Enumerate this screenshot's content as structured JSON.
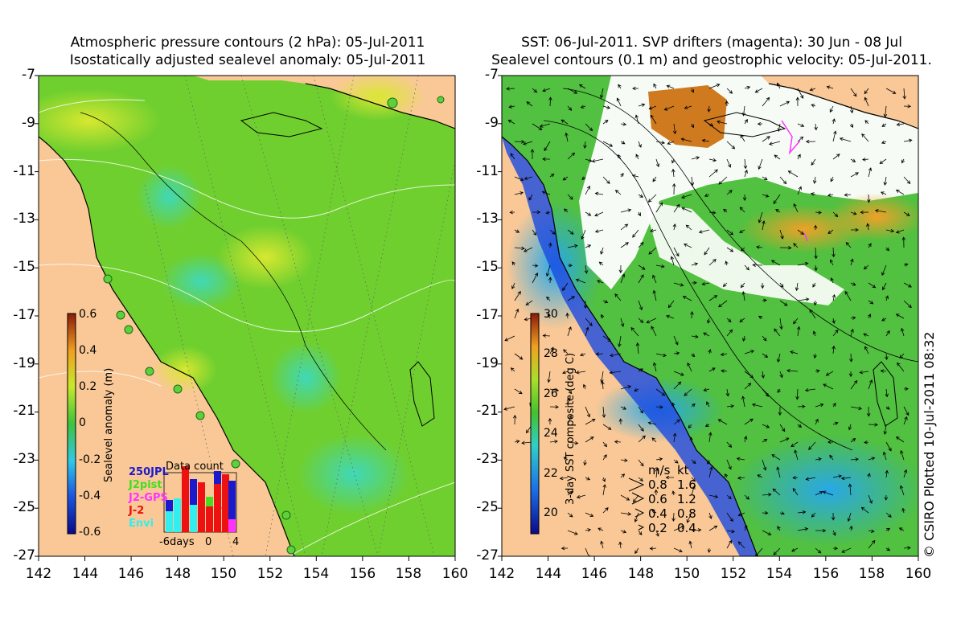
{
  "left_panel": {
    "title_line1": "Atmospheric pressure contours (2 hPa): 05-Jul-2011",
    "title_line2": "Isostatically adjusted sealevel anomaly: 05-Jul-2011",
    "colorbar": {
      "label": "Sealevel anomaly (m)",
      "ticks": [
        "0.6",
        "0.4",
        "0.2",
        "0",
        "-0.2",
        "-0.4",
        "-0.6"
      ]
    },
    "data_count": {
      "title": "Data count",
      "legend": [
        {
          "name": "250JPL",
          "color": "#1a1acc"
        },
        {
          "name": "J2pist",
          "color": "#44dd22"
        },
        {
          "name": "J2-GPS",
          "color": "#ff33ff"
        },
        {
          "name": "J-2",
          "color": "#ee1111"
        },
        {
          "name": "Envi",
          "color": "#33eeee"
        }
      ],
      "x_ticks": [
        "-6days",
        "0",
        "4"
      ]
    }
  },
  "right_panel": {
    "title_line1": "SST: 06-Jul-2011. SVP drifters (magenta): 30 Jun - 08 Jul",
    "title_line2": "Sealevel contours (0.1 m) and geostrophic velocity: 05-Jul-2011.",
    "colorbar": {
      "label": "3-day SST composite (deg C)",
      "ticks": [
        "30",
        "28",
        "26",
        "24",
        "22",
        "20"
      ]
    },
    "velocity_legend": {
      "header_ms": "m/s",
      "header_kt": "kt",
      "rows": [
        {
          "ms": "0.8",
          "kt": "1.6"
        },
        {
          "ms": "0.6",
          "kt": "1.2"
        },
        {
          "ms": "0.4",
          "kt": "0.8"
        },
        {
          "ms": "0.2",
          "kt": "0.4"
        }
      ]
    }
  },
  "axes": {
    "y_ticks": [
      "-7",
      "-9",
      "-11",
      "-13",
      "-15",
      "-17",
      "-19",
      "-21",
      "-23",
      "-25",
      "-27"
    ],
    "x_ticks": [
      "142",
      "144",
      "146",
      "148",
      "150",
      "152",
      "154",
      "156",
      "158",
      "160"
    ]
  },
  "credit": "© CSIRO Plotted 10-Jul-2011 08:32",
  "colors": {
    "land": "#f9c896",
    "sea_green": "#6fcf2f",
    "sst_white": "#ffffff"
  }
}
